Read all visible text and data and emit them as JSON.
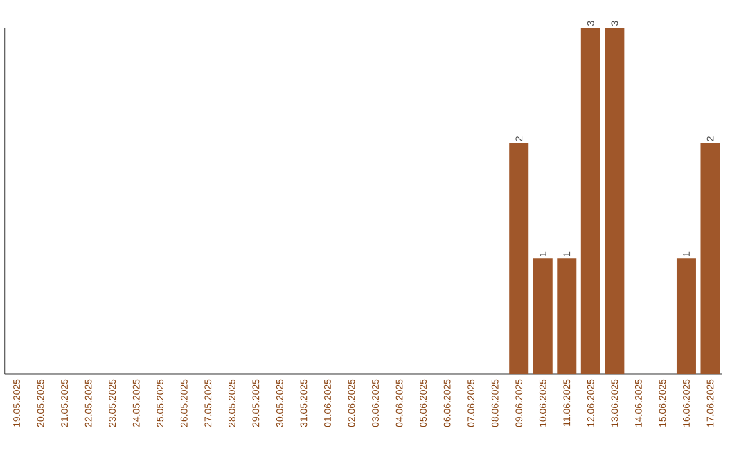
{
  "chart_data": {
    "type": "bar",
    "categories": [
      "19.05.2025",
      "20.05.2025",
      "21.05.2025",
      "22.05.2025",
      "23.05.2025",
      "24.05.2025",
      "25.05.2025",
      "26.05.2025",
      "27.05.2025",
      "28.05.2025",
      "29.05.2025",
      "30.05.2025",
      "31.05.2025",
      "01.06.2025",
      "02.06.2025",
      "03.06.2025",
      "04.06.2025",
      "05.06.2025",
      "06.06.2025",
      "07.06.2025",
      "08.06.2025",
      "09.06.2025",
      "10.06.2025",
      "11.06.2025",
      "12.06.2025",
      "13.06.2025",
      "14.06.2025",
      "15.06.2025",
      "16.06.2025",
      "17.06.2025"
    ],
    "values": [
      null,
      null,
      null,
      null,
      null,
      null,
      null,
      null,
      null,
      null,
      null,
      null,
      null,
      null,
      null,
      null,
      null,
      null,
      null,
      null,
      null,
      2,
      1,
      1,
      3,
      3,
      null,
      null,
      1,
      2
    ],
    "value_labels": [
      null,
      null,
      null,
      null,
      null,
      null,
      null,
      null,
      null,
      null,
      null,
      null,
      null,
      null,
      null,
      null,
      null,
      null,
      null,
      null,
      null,
      "2",
      "1",
      "1",
      "3",
      "3",
      null,
      null,
      "1",
      "2"
    ],
    "color": "#a0572a"
  }
}
